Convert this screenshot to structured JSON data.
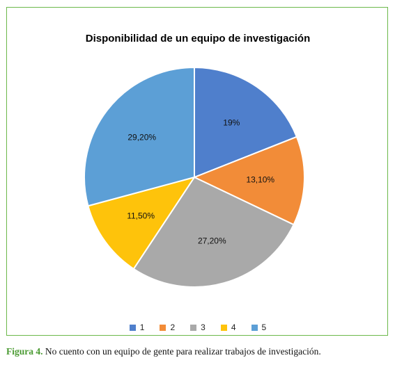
{
  "chart_data": {
    "type": "pie",
    "title": "Disponibilidad de un equipo de investigación",
    "categories": [
      "1",
      "2",
      "3",
      "4",
      "5"
    ],
    "values": [
      19,
      13.1,
      27.2,
      11.5,
      29.2
    ],
    "data_labels": [
      "19%",
      "13,10%",
      "27,20%",
      "11,50%",
      "29,20%"
    ],
    "colors": [
      "#4f7fcc",
      "#f28c38",
      "#a9a9a9",
      "#fec30b",
      "#5c9fd6"
    ],
    "legend_position": "bottom"
  },
  "caption": {
    "label": "Figura 4.",
    "text": " No cuento con un equipo de gente para realizar trabajos de investigación."
  }
}
